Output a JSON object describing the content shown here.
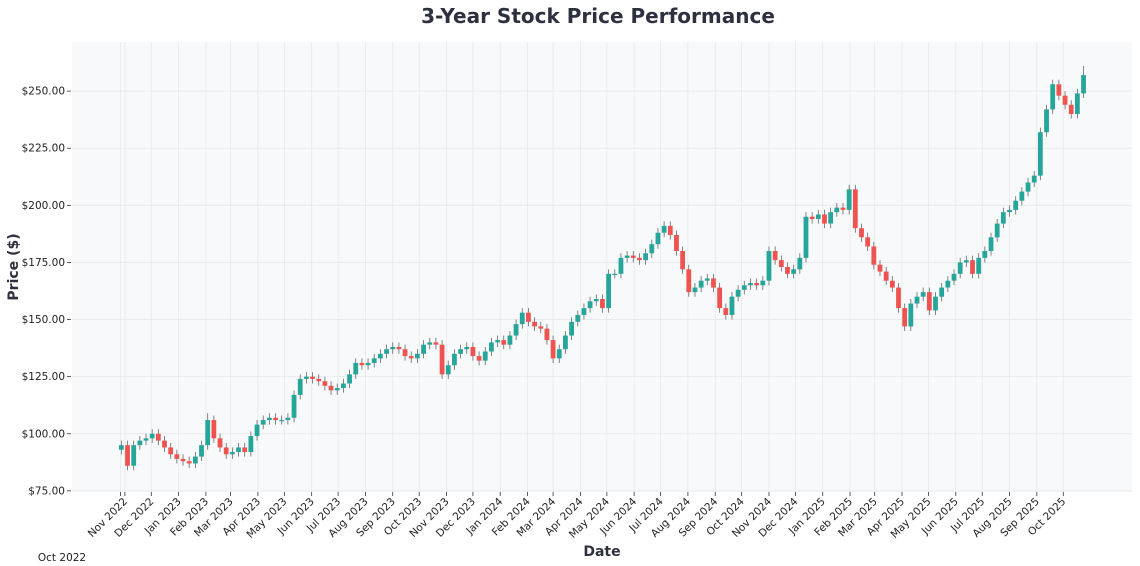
{
  "chart_data": {
    "type": "candlestick",
    "title": "3-Year Stock Price Performance",
    "xlabel": "Date",
    "ylabel": "Price ($)",
    "xlim": [
      "2022-09-02",
      "2025-12-18"
    ],
    "ylim": [
      74.5,
      271.5
    ],
    "grid": true,
    "colors": {
      "up": "#26a69a",
      "down": "#ef5350",
      "plot_background": "#f7f9fa",
      "grid": "#e6e8ea"
    },
    "y_ticks": [
      {
        "value": 75,
        "label": "$75.00"
      },
      {
        "value": 100,
        "label": "$100.00"
      },
      {
        "value": 125,
        "label": "$125.00"
      },
      {
        "value": 150,
        "label": "$150.00"
      },
      {
        "value": 175,
        "label": "$175.00"
      },
      {
        "value": 200,
        "label": "$200.00"
      },
      {
        "value": 225,
        "label": "$225.00"
      },
      {
        "value": 250,
        "label": "$250.00"
      }
    ],
    "x_ticks": [
      {
        "date": "2022-10-27",
        "label": "Oct 2022"
      },
      {
        "date": "2022-11-01",
        "label": "Nov 2022"
      },
      {
        "date": "2022-12-01",
        "label": "Dec 2022"
      },
      {
        "date": "2023-01-01",
        "label": "Jan 2023"
      },
      {
        "date": "2023-02-01",
        "label": "Feb 2023"
      },
      {
        "date": "2023-03-01",
        "label": "Mar 2023"
      },
      {
        "date": "2023-04-01",
        "label": "Apr 2023"
      },
      {
        "date": "2023-05-01",
        "label": "May 2023"
      },
      {
        "date": "2023-06-01",
        "label": "Jun 2023"
      },
      {
        "date": "2023-07-01",
        "label": "Jul 2023"
      },
      {
        "date": "2023-08-01",
        "label": "Aug 2023"
      },
      {
        "date": "2023-09-01",
        "label": "Sep 2023"
      },
      {
        "date": "2023-10-01",
        "label": "Oct 2023"
      },
      {
        "date": "2023-11-01",
        "label": "Nov 2023"
      },
      {
        "date": "2023-12-01",
        "label": "Dec 2023"
      },
      {
        "date": "2024-01-01",
        "label": "Jan 2024"
      },
      {
        "date": "2024-02-01",
        "label": "Feb 2024"
      },
      {
        "date": "2024-03-01",
        "label": "Mar 2024"
      },
      {
        "date": "2024-04-01",
        "label": "Apr 2024"
      },
      {
        "date": "2024-05-01",
        "label": "May 2024"
      },
      {
        "date": "2024-06-01",
        "label": "Jun 2024"
      },
      {
        "date": "2024-07-01",
        "label": "Jul 2024"
      },
      {
        "date": "2024-08-01",
        "label": "Aug 2024"
      },
      {
        "date": "2024-09-01",
        "label": "Sep 2024"
      },
      {
        "date": "2024-10-01",
        "label": "Oct 2024"
      },
      {
        "date": "2024-11-01",
        "label": "Nov 2024"
      },
      {
        "date": "2024-12-01",
        "label": "Dec 2024"
      },
      {
        "date": "2025-01-01",
        "label": "Jan 2025"
      },
      {
        "date": "2025-02-01",
        "label": "Feb 2025"
      },
      {
        "date": "2025-03-01",
        "label": "Mar 2025"
      },
      {
        "date": "2025-04-01",
        "label": "Apr 2025"
      },
      {
        "date": "2025-05-01",
        "label": "May 2025"
      },
      {
        "date": "2025-06-01",
        "label": "Jun 2025"
      },
      {
        "date": "2025-07-01",
        "label": "Jul 2025"
      },
      {
        "date": "2025-08-01",
        "label": "Aug 2025"
      },
      {
        "date": "2025-09-01",
        "label": "Sep 2025"
      },
      {
        "date": "2025-10-01",
        "label": "Oct 2025"
      }
    ],
    "columns": [
      "date",
      "open",
      "high",
      "low",
      "close"
    ],
    "candles": [
      [
        "2022-10-28",
        93,
        97,
        91,
        95
      ],
      [
        "2022-11-04",
        95,
        97,
        84,
        86
      ],
      [
        "2022-11-11",
        86,
        97,
        84,
        95
      ],
      [
        "2022-11-18",
        95,
        99,
        93,
        97
      ],
      [
        "2022-11-25",
        97,
        100,
        95,
        98
      ],
      [
        "2022-12-02",
        98,
        102,
        96,
        100
      ],
      [
        "2022-12-09",
        100,
        102,
        95,
        97
      ],
      [
        "2022-12-16",
        97,
        99,
        92,
        94
      ],
      [
        "2022-12-23",
        94,
        96,
        89,
        91
      ],
      [
        "2022-12-30",
        91,
        93,
        87,
        89
      ],
      [
        "2023-01-06",
        89,
        91,
        86,
        88
      ],
      [
        "2023-01-13",
        88,
        90,
        85,
        87
      ],
      [
        "2023-01-20",
        87,
        92,
        85,
        90
      ],
      [
        "2023-01-27",
        90,
        97,
        88,
        95
      ],
      [
        "2023-02-03",
        95,
        109,
        93,
        106
      ],
      [
        "2023-02-10",
        106,
        108,
        96,
        98
      ],
      [
        "2023-02-17",
        98,
        100,
        92,
        94
      ],
      [
        "2023-02-24",
        94,
        96,
        89,
        91
      ],
      [
        "2023-03-03",
        91,
        94,
        89,
        92
      ],
      [
        "2023-03-10",
        92,
        96,
        90,
        94
      ],
      [
        "2023-03-17",
        94,
        96,
        90,
        92
      ],
      [
        "2023-03-24",
        92,
        101,
        90,
        99
      ],
      [
        "2023-03-31",
        99,
        106,
        97,
        104
      ],
      [
        "2023-04-07",
        104,
        108,
        102,
        106
      ],
      [
        "2023-04-14",
        106,
        109,
        104,
        107
      ],
      [
        "2023-04-21",
        107,
        109,
        104,
        106
      ],
      [
        "2023-04-28",
        106,
        108,
        104,
        106
      ],
      [
        "2023-05-05",
        106,
        109,
        104,
        107
      ],
      [
        "2023-05-12",
        107,
        119,
        105,
        117
      ],
      [
        "2023-05-19",
        117,
        126,
        115,
        124
      ],
      [
        "2023-05-26",
        124,
        127,
        122,
        125
      ],
      [
        "2023-06-02",
        125,
        127,
        122,
        124
      ],
      [
        "2023-06-09",
        124,
        126,
        121,
        123
      ],
      [
        "2023-06-16",
        123,
        125,
        119,
        121
      ],
      [
        "2023-06-23",
        121,
        123,
        117,
        119
      ],
      [
        "2023-06-30",
        119,
        122,
        117,
        120
      ],
      [
        "2023-07-07",
        120,
        124,
        118,
        122
      ],
      [
        "2023-07-14",
        122,
        128,
        120,
        126
      ],
      [
        "2023-07-21",
        126,
        133,
        124,
        131
      ],
      [
        "2023-07-28",
        131,
        133,
        128,
        130
      ],
      [
        "2023-08-04",
        130,
        133,
        128,
        131
      ],
      [
        "2023-08-11",
        131,
        135,
        129,
        133
      ],
      [
        "2023-08-18",
        133,
        137,
        131,
        135
      ],
      [
        "2023-08-25",
        135,
        139,
        133,
        137
      ],
      [
        "2023-09-01",
        137,
        140,
        135,
        138
      ],
      [
        "2023-09-08",
        138,
        140,
        135,
        137
      ],
      [
        "2023-09-15",
        137,
        139,
        132,
        134
      ],
      [
        "2023-09-22",
        134,
        136,
        131,
        133
      ],
      [
        "2023-09-29",
        133,
        137,
        131,
        135
      ],
      [
        "2023-10-06",
        135,
        141,
        133,
        139
      ],
      [
        "2023-10-13",
        139,
        142,
        137,
        140
      ],
      [
        "2023-10-20",
        140,
        142,
        137,
        139
      ],
      [
        "2023-10-27",
        139,
        141,
        124,
        126
      ],
      [
        "2023-11-03",
        126,
        132,
        124,
        130
      ],
      [
        "2023-11-10",
        130,
        137,
        128,
        135
      ],
      [
        "2023-11-17",
        135,
        139,
        133,
        137
      ],
      [
        "2023-11-24",
        137,
        140,
        135,
        138
      ],
      [
        "2023-12-01",
        138,
        140,
        132,
        134
      ],
      [
        "2023-12-08",
        134,
        136,
        130,
        132
      ],
      [
        "2023-12-15",
        132,
        138,
        130,
        136
      ],
      [
        "2023-12-22",
        136,
        142,
        134,
        140
      ],
      [
        "2023-12-29",
        140,
        143,
        138,
        141
      ],
      [
        "2024-01-05",
        141,
        143,
        137,
        139
      ],
      [
        "2024-01-12",
        139,
        145,
        137,
        143
      ],
      [
        "2024-01-19",
        143,
        150,
        141,
        148
      ],
      [
        "2024-01-26",
        148,
        155,
        146,
        153
      ],
      [
        "2024-02-02",
        153,
        155,
        147,
        149
      ],
      [
        "2024-02-09",
        149,
        151,
        145,
        147
      ],
      [
        "2024-02-16",
        147,
        149,
        144,
        146
      ],
      [
        "2024-02-23",
        146,
        148,
        139,
        141
      ],
      [
        "2024-03-01",
        141,
        143,
        131,
        133
      ],
      [
        "2024-03-08",
        133,
        139,
        131,
        137
      ],
      [
        "2024-03-15",
        137,
        145,
        135,
        143
      ],
      [
        "2024-03-22",
        143,
        151,
        141,
        149
      ],
      [
        "2024-03-29",
        149,
        154,
        147,
        152
      ],
      [
        "2024-04-05",
        152,
        157,
        150,
        155
      ],
      [
        "2024-04-12",
        155,
        160,
        153,
        158
      ],
      [
        "2024-04-19",
        158,
        161,
        156,
        159
      ],
      [
        "2024-04-26",
        159,
        161,
        153,
        155
      ],
      [
        "2024-05-03",
        155,
        172,
        153,
        170
      ],
      [
        "2024-05-10",
        170,
        172,
        168,
        170
      ],
      [
        "2024-05-17",
        170,
        179,
        168,
        177
      ],
      [
        "2024-05-24",
        177,
        180,
        175,
        178
      ],
      [
        "2024-05-31",
        178,
        180,
        175,
        177
      ],
      [
        "2024-06-07",
        177,
        179,
        174,
        176
      ],
      [
        "2024-06-14",
        176,
        181,
        174,
        179
      ],
      [
        "2024-06-21",
        179,
        185,
        177,
        183
      ],
      [
        "2024-06-28",
        183,
        190,
        181,
        188
      ],
      [
        "2024-07-05",
        188,
        193,
        186,
        191
      ],
      [
        "2024-07-12",
        191,
        193,
        185,
        187
      ],
      [
        "2024-07-19",
        187,
        189,
        178,
        180
      ],
      [
        "2024-07-26",
        180,
        182,
        170,
        172
      ],
      [
        "2024-08-02",
        172,
        174,
        160,
        162
      ],
      [
        "2024-08-09",
        162,
        166,
        160,
        164
      ],
      [
        "2024-08-16",
        164,
        169,
        162,
        167
      ],
      [
        "2024-08-23",
        167,
        170,
        165,
        168
      ],
      [
        "2024-08-30",
        168,
        170,
        162,
        164
      ],
      [
        "2024-09-06",
        164,
        166,
        153,
        155
      ],
      [
        "2024-09-13",
        155,
        157,
        150,
        152
      ],
      [
        "2024-09-20",
        152,
        162,
        150,
        160
      ],
      [
        "2024-09-27",
        160,
        165,
        158,
        163
      ],
      [
        "2024-10-04",
        163,
        167,
        161,
        165
      ],
      [
        "2024-10-11",
        165,
        168,
        163,
        166
      ],
      [
        "2024-10-18",
        166,
        168,
        163,
        165
      ],
      [
        "2024-10-25",
        165,
        169,
        163,
        167
      ],
      [
        "2024-11-01",
        167,
        182,
        165,
        180
      ],
      [
        "2024-11-08",
        180,
        182,
        174,
        176
      ],
      [
        "2024-11-15",
        176,
        178,
        171,
        173
      ],
      [
        "2024-11-22",
        173,
        175,
        168,
        170
      ],
      [
        "2024-11-29",
        170,
        174,
        168,
        172
      ],
      [
        "2024-12-06",
        172,
        179,
        170,
        177
      ],
      [
        "2024-12-13",
        177,
        197,
        175,
        195
      ],
      [
        "2024-12-20",
        195,
        197,
        192,
        194
      ],
      [
        "2024-12-27",
        194,
        198,
        192,
        196
      ],
      [
        "2025-01-03",
        196,
        198,
        190,
        192
      ],
      [
        "2025-01-10",
        192,
        199,
        190,
        197
      ],
      [
        "2025-01-17",
        197,
        201,
        195,
        199
      ],
      [
        "2025-01-24",
        199,
        201,
        196,
        198
      ],
      [
        "2025-01-31",
        198,
        209,
        196,
        207
      ],
      [
        "2025-02-07",
        207,
        209,
        188,
        190
      ],
      [
        "2025-02-14",
        190,
        192,
        184,
        186
      ],
      [
        "2025-02-21",
        186,
        188,
        180,
        182
      ],
      [
        "2025-02-28",
        182,
        184,
        172,
        174
      ],
      [
        "2025-03-07",
        174,
        176,
        169,
        171
      ],
      [
        "2025-03-14",
        171,
        173,
        165,
        167
      ],
      [
        "2025-03-21",
        167,
        169,
        162,
        164
      ],
      [
        "2025-03-28",
        164,
        166,
        153,
        155
      ],
      [
        "2025-04-04",
        155,
        157,
        145,
        147
      ],
      [
        "2025-04-11",
        147,
        159,
        145,
        157
      ],
      [
        "2025-04-18",
        157,
        162,
        155,
        160
      ],
      [
        "2025-04-25",
        160,
        164,
        158,
        162
      ],
      [
        "2025-05-02",
        162,
        164,
        152,
        154
      ],
      [
        "2025-05-09",
        154,
        162,
        152,
        160
      ],
      [
        "2025-05-16",
        160,
        166,
        158,
        164
      ],
      [
        "2025-05-23",
        164,
        169,
        162,
        167
      ],
      [
        "2025-05-30",
        167,
        172,
        165,
        170
      ],
      [
        "2025-06-06",
        170,
        177,
        168,
        175
      ],
      [
        "2025-06-13",
        175,
        178,
        173,
        176
      ],
      [
        "2025-06-20",
        176,
        178,
        168,
        170
      ],
      [
        "2025-06-27",
        170,
        179,
        168,
        177
      ],
      [
        "2025-07-04",
        177,
        182,
        175,
        180
      ],
      [
        "2025-07-11",
        180,
        188,
        178,
        186
      ],
      [
        "2025-07-18",
        186,
        194,
        184,
        192
      ],
      [
        "2025-07-25",
        192,
        199,
        190,
        197
      ],
      [
        "2025-08-01",
        197,
        200,
        195,
        198
      ],
      [
        "2025-08-08",
        198,
        204,
        196,
        202
      ],
      [
        "2025-08-15",
        202,
        208,
        200,
        206
      ],
      [
        "2025-08-22",
        206,
        212,
        204,
        210
      ],
      [
        "2025-08-29",
        210,
        215,
        208,
        213
      ],
      [
        "2025-09-05",
        213,
        234,
        211,
        232
      ],
      [
        "2025-09-12",
        232,
        244,
        230,
        242
      ],
      [
        "2025-09-19",
        242,
        255,
        240,
        253
      ],
      [
        "2025-09-26",
        253,
        255,
        246,
        248
      ],
      [
        "2025-10-03",
        248,
        250,
        242,
        244
      ],
      [
        "2025-10-10",
        244,
        246,
        238,
        240
      ],
      [
        "2025-10-17",
        240,
        251,
        238,
        249
      ],
      [
        "2025-10-24",
        249,
        261,
        247,
        257
      ]
    ]
  }
}
